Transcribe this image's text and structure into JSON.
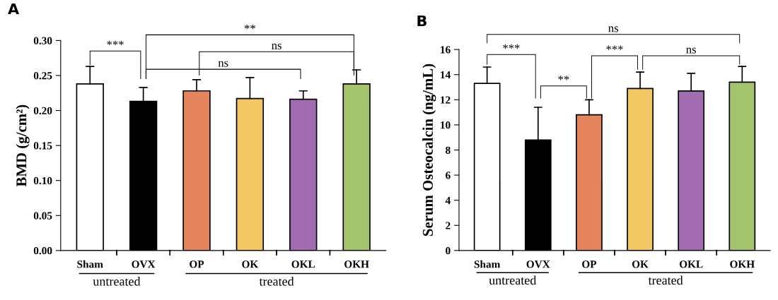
{
  "chart_data": [
    {
      "type": "bar",
      "title": "A",
      "ylabel": "BMD (g/cm²)",
      "categories": [
        "Sham",
        "OVX",
        "OP",
        "OK",
        "OKL",
        "OKH"
      ],
      "values": [
        0.238,
        0.213,
        0.228,
        0.217,
        0.216,
        0.238
      ],
      "errors": [
        [
          0.238,
          0.263
        ],
        [
          0.213,
          0.233
        ],
        [
          0.228,
          0.244
        ],
        [
          0.217,
          0.247
        ],
        [
          0.216,
          0.228
        ],
        [
          0.238,
          0.258
        ]
      ],
      "colors": [
        "#ffffff",
        "#000000",
        "#e5855e",
        "#f2c865",
        "#a16db0",
        "#a3c46c"
      ],
      "ylim": [
        0,
        0.3
      ],
      "yticks": [
        {
          "value": 0,
          "label": "0.00"
        },
        {
          "value": 0.05,
          "label": "0.05"
        },
        {
          "value": 0.1,
          "label": "0.10"
        },
        {
          "value": 0.15,
          "label": "0.15"
        },
        {
          "value": 0.2,
          "label": "0.20"
        },
        {
          "value": 0.25,
          "label": "0.25"
        },
        {
          "value": 0.3,
          "label": "0.30"
        }
      ],
      "annotations": [
        "***",
        "**",
        "ns",
        "ns",
        "untreated",
        "treated"
      ]
    },
    {
      "type": "bar",
      "title": "B",
      "ylabel": "Serum Osteocalcin (ng/mL)",
      "categories": [
        "Sham",
        "OVX",
        "OP",
        "OK",
        "OKL",
        "OKH"
      ],
      "values": [
        13.3,
        8.8,
        10.8,
        12.9,
        12.7,
        13.4
      ],
      "errors": [
        [
          13.3,
          14.6
        ],
        [
          8.8,
          11.4
        ],
        [
          10.8,
          12.0
        ],
        [
          12.9,
          14.2
        ],
        [
          12.7,
          14.1
        ],
        [
          13.4,
          14.65
        ]
      ],
      "colors": [
        "#ffffff",
        "#000000",
        "#e5855e",
        "#f2c865",
        "#a16db0",
        "#a3c46c"
      ],
      "ylim": [
        0,
        16
      ],
      "yticks": [
        0,
        2,
        4,
        6,
        8,
        10,
        12,
        14,
        16
      ],
      "annotations": [
        "ns",
        "***",
        "**",
        "***",
        "ns",
        "untreated",
        "treated"
      ]
    }
  ]
}
